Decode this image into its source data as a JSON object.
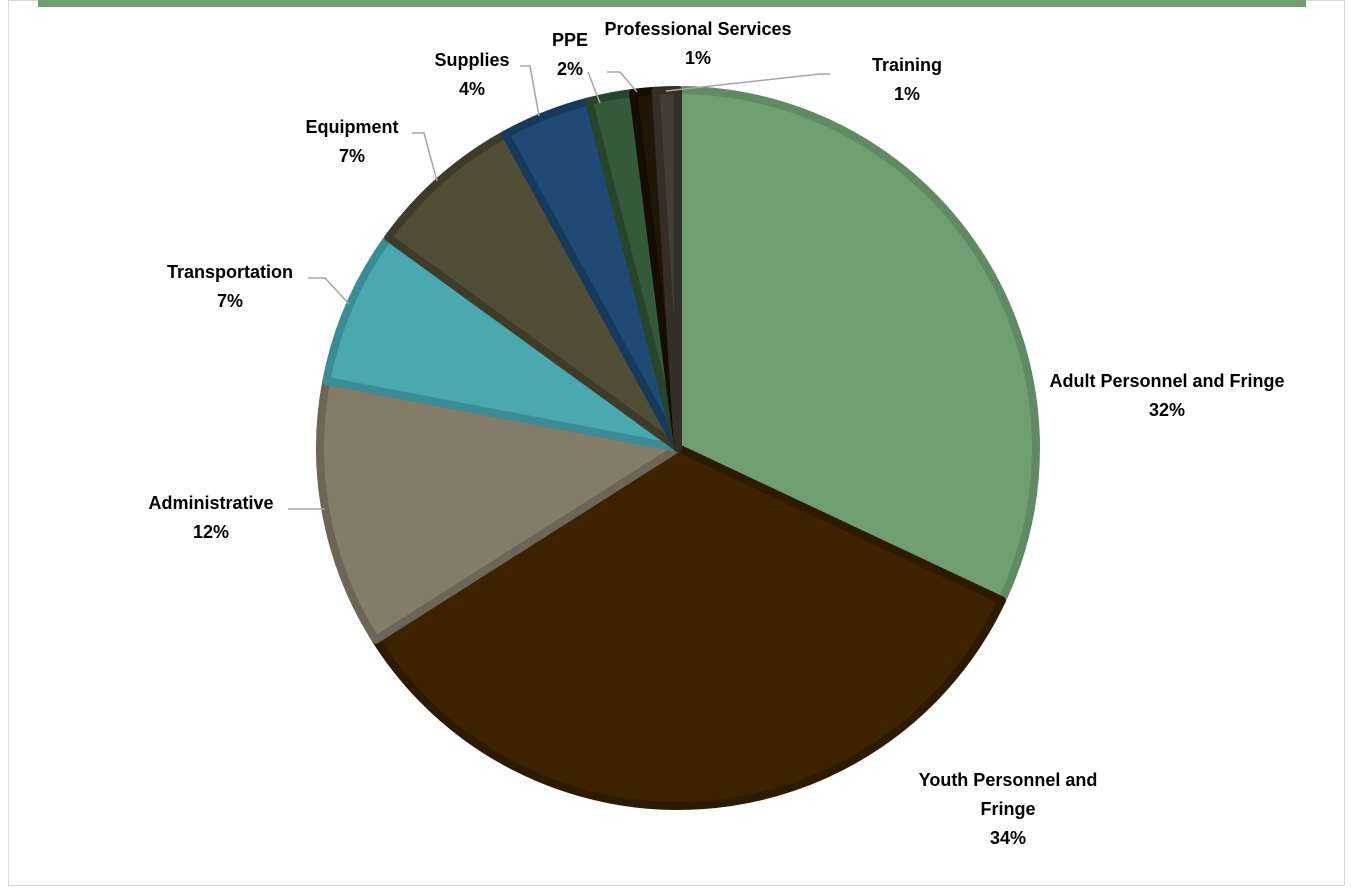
{
  "chart_data": {
    "type": "pie",
    "title": "",
    "slices": [
      {
        "label": "Adult Personnel and Fringe",
        "value": 32,
        "pct_label": "32%",
        "color": "#6e9e72",
        "border": "#5f8a63"
      },
      {
        "label": "Youth Personnel and Fringe",
        "value": 34,
        "pct_label": "34%",
        "color": "#3d2200",
        "border": "#2e1a00"
      },
      {
        "label": "Administrative",
        "value": 12,
        "pct_label": "12%",
        "color": "#847c68",
        "border": "#6d6656"
      },
      {
        "label": "Transportation",
        "value": 7,
        "pct_label": "7%",
        "color": "#4aa8b0",
        "border": "#3a8d94"
      },
      {
        "label": "Equipment",
        "value": 7,
        "pct_label": "7%",
        "color": "#514e37",
        "border": "#3e3b29"
      },
      {
        "label": "Supplies",
        "value": 4,
        "pct_label": "4%",
        "color": "#1e4a74",
        "border": "#163a5c"
      },
      {
        "label": "PPE",
        "value": 2,
        "pct_label": "2%",
        "color": "#355a3a",
        "border": "#27452b"
      },
      {
        "label": "Professional Services",
        "value": 1,
        "pct_label": "1%",
        "color": "#211505",
        "border": "#150d02"
      },
      {
        "label": "Training",
        "value": 1,
        "pct_label": "1%",
        "color": "#433d33",
        "border": "#332e26"
      }
    ],
    "legend": "none",
    "data_labels": "outside with leader lines"
  }
}
